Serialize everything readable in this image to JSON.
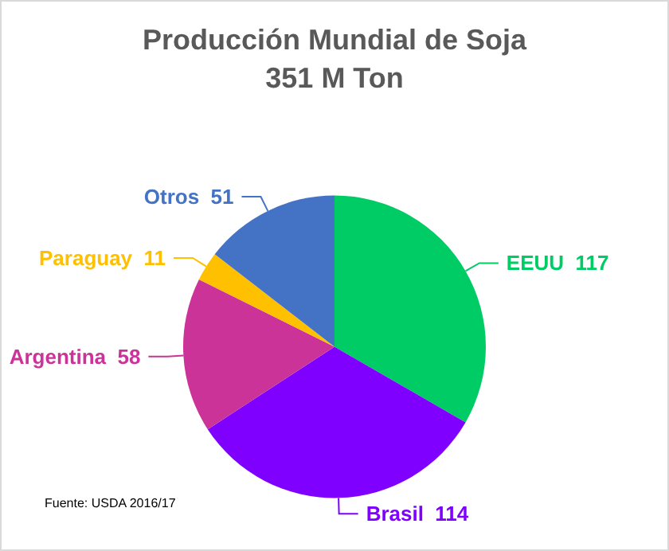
{
  "chart_data": {
    "type": "pie",
    "title": "Producción Mundial de Soja",
    "subtitle": "351 M Ton",
    "categories": [
      "EEUU",
      "Brasil",
      "Argentina",
      "Paraguay",
      "Otros"
    ],
    "values": [
      117,
      114,
      58,
      11,
      51
    ],
    "colors": [
      "#00cc66",
      "#7f00ff",
      "#cc3399",
      "#ffc000",
      "#4472c4"
    ],
    "data_labels": true,
    "legend": false,
    "annotations": [
      "Fuente: USDA 2016/17"
    ]
  }
}
